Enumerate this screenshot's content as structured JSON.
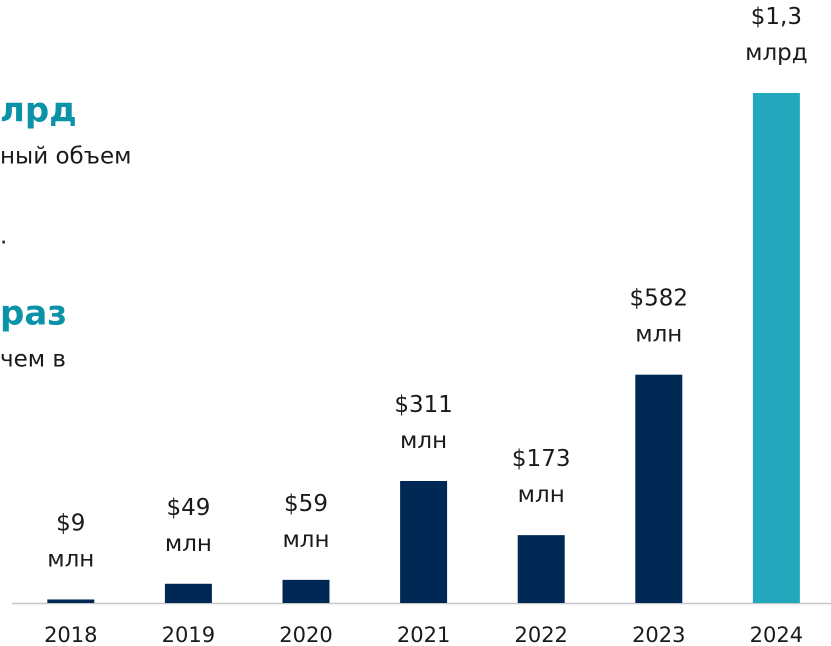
{
  "chart_data": {
    "type": "bar",
    "categories": [
      "2018",
      "2019",
      "2020",
      "2021",
      "2022",
      "2023",
      "2024"
    ],
    "values": [
      9,
      49,
      59,
      311,
      173,
      582,
      1300
    ],
    "value_labels": [
      "$9 млн",
      "$49 млн",
      "$59 млн",
      "$311 млн",
      "$173 млн",
      "$582 млн",
      "$1,3 млрд"
    ],
    "colors": [
      "#002855",
      "#002855",
      "#002855",
      "#002855",
      "#002855",
      "#002855",
      "#23a7bd"
    ],
    "annotations": [
      {
        "text": "лрд",
        "style": "highlight"
      },
      {
        "text": "ный объем",
        "style": "body"
      },
      {
        "text": ".",
        "style": "body"
      },
      {
        "text": "раз",
        "style": "highlight"
      },
      {
        "text": "чем в",
        "style": "body"
      }
    ]
  }
}
